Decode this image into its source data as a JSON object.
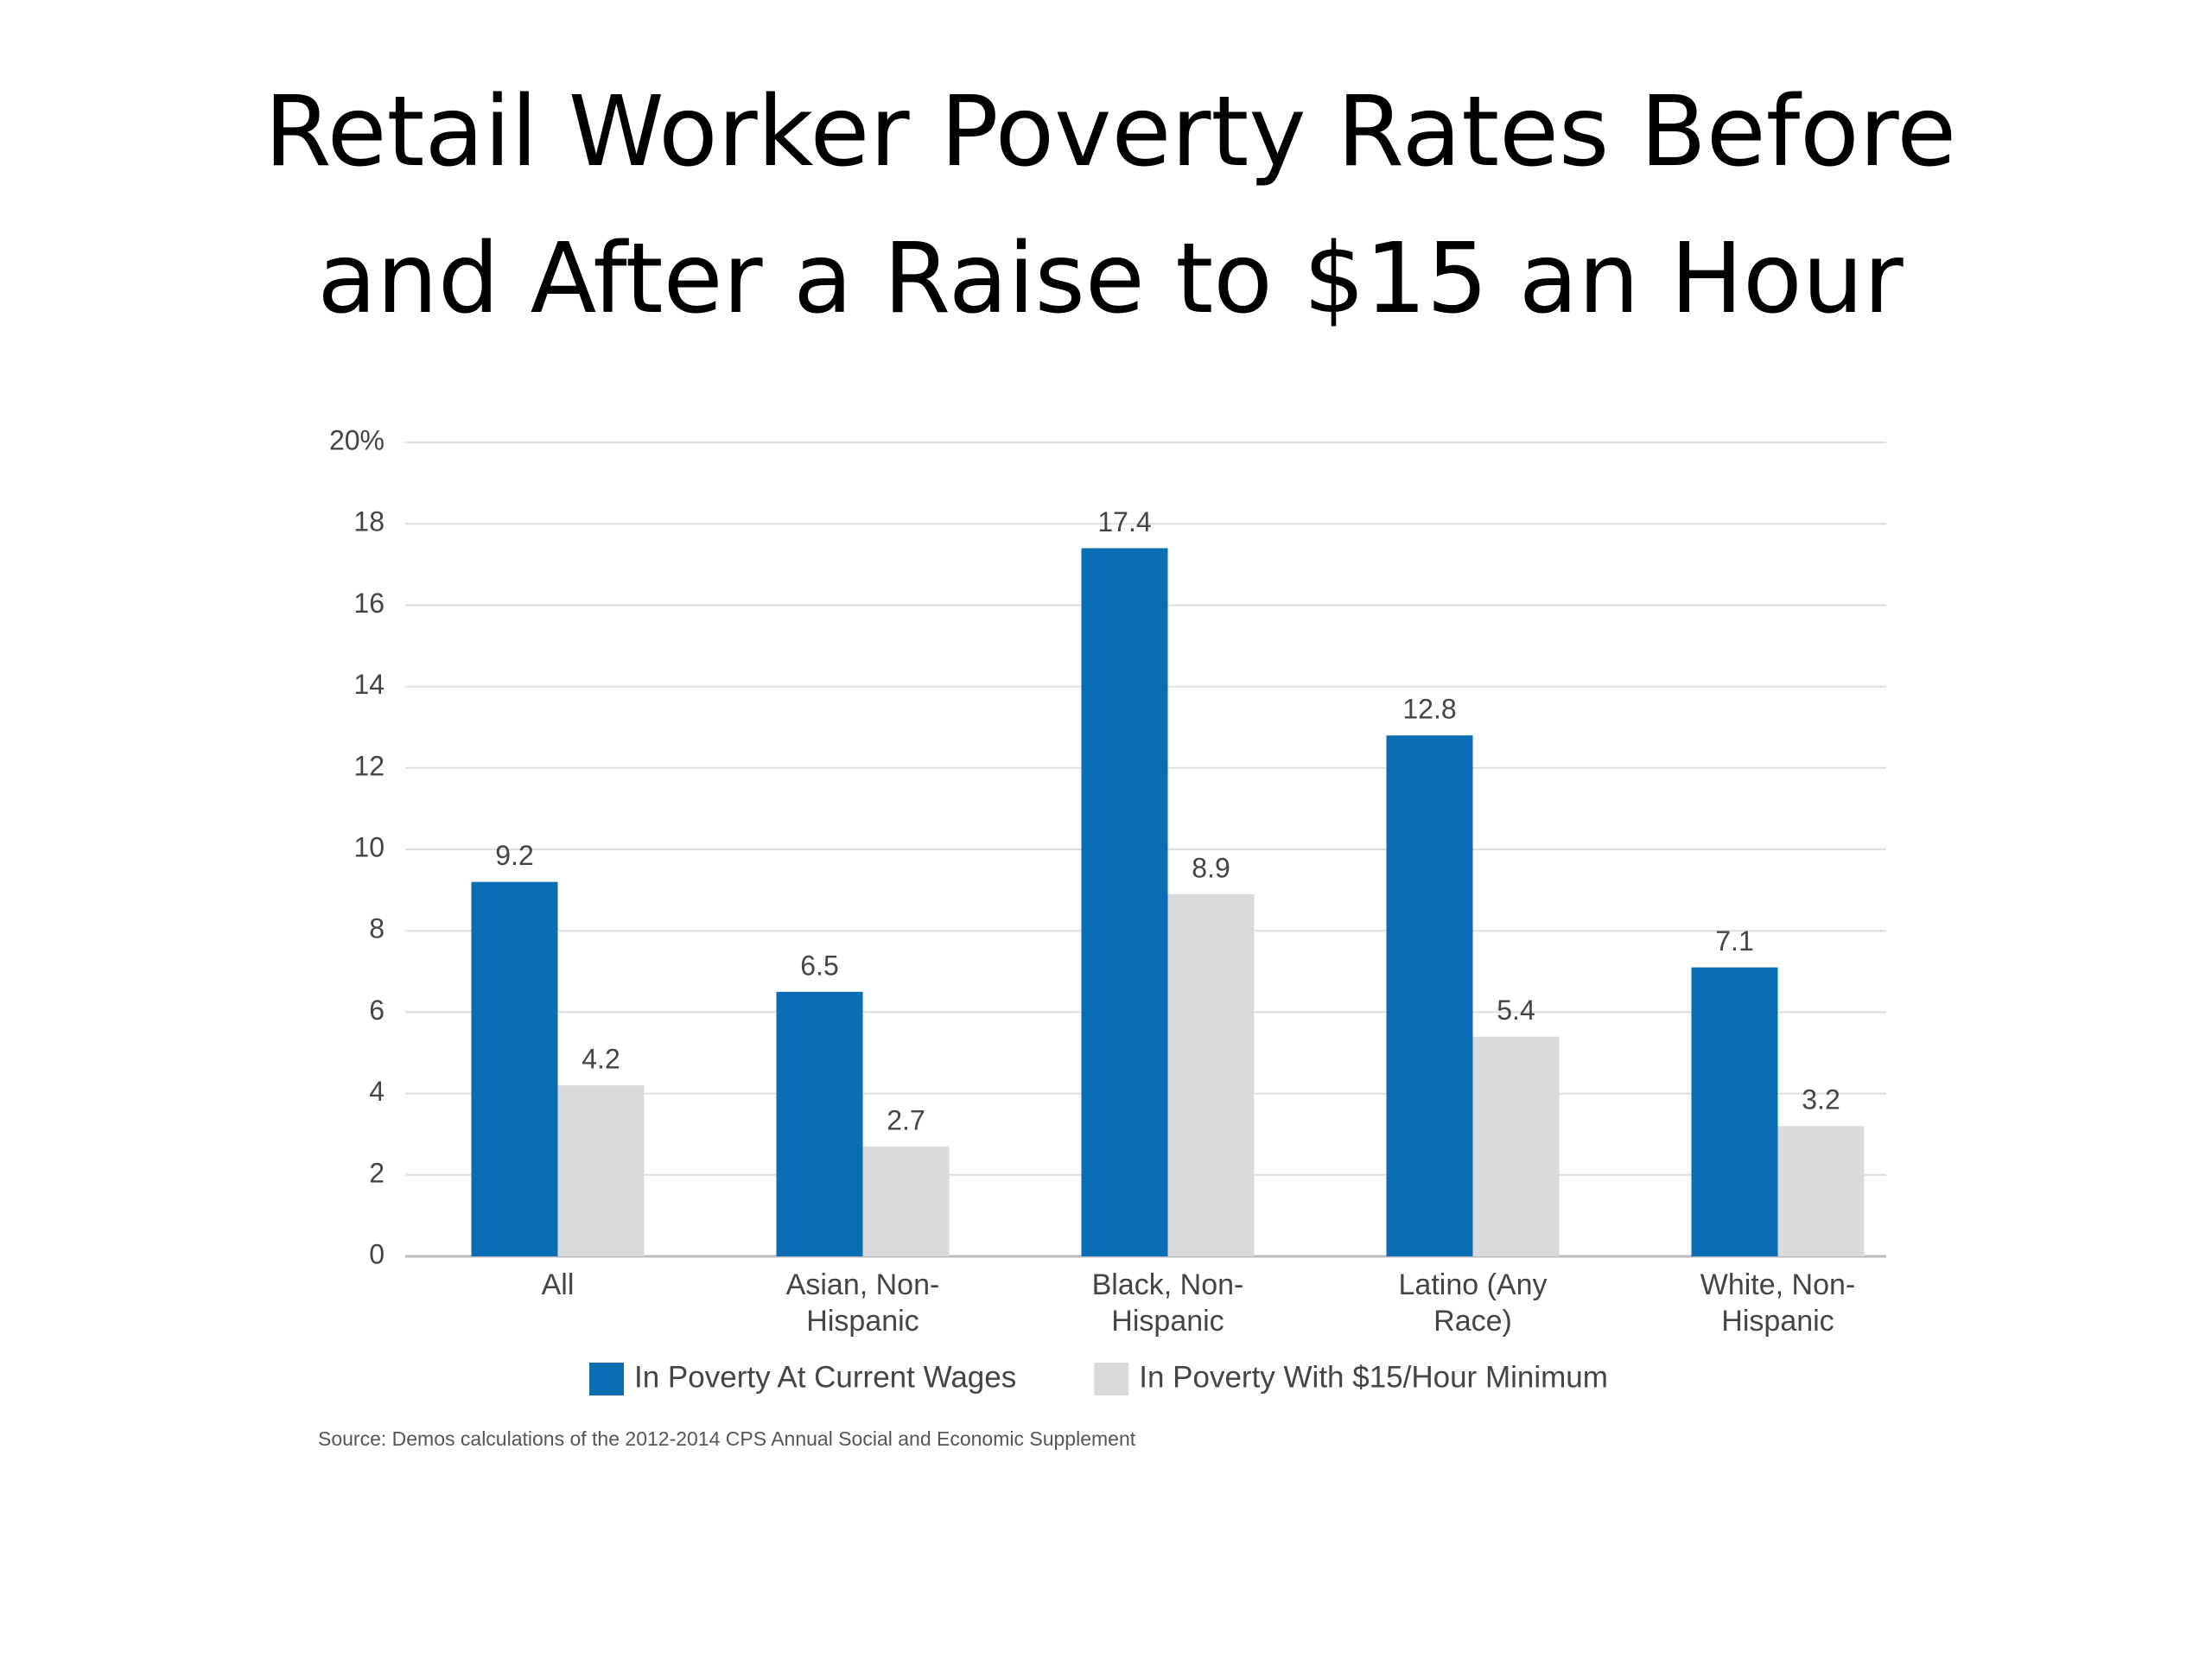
{
  "chart_data": {
    "type": "bar",
    "title": [
      "Retail Worker Poverty Rates Before",
      "and After a Raise to $15 an Hour"
    ],
    "categories": [
      "All",
      "Asian, Non-Hispanic",
      "Black, Non-Hispanic",
      "Latino (Any Race)",
      "White, Non-Hispanic"
    ],
    "series": [
      {
        "name": "In Poverty At Current Wages",
        "color": "#0b6db4",
        "values": [
          9.2,
          6.5,
          17.4,
          12.8,
          7.1
        ]
      },
      {
        "name": "In Poverty With $15/Hour Minimum",
        "color": "#d9dadb",
        "values": [
          4.2,
          2.7,
          8.9,
          5.4,
          3.2
        ]
      }
    ],
    "ylim": [
      0,
      20
    ],
    "yticks": [
      0,
      2,
      4,
      6,
      8,
      10,
      12,
      14,
      16,
      18,
      {
        "value": 20,
        "label": "20%"
      }
    ],
    "grid": true,
    "legend": "bottom",
    "source": "Source: Demos calculations of the 2012-2014 CPS Annual Social and Economic Supplement"
  }
}
